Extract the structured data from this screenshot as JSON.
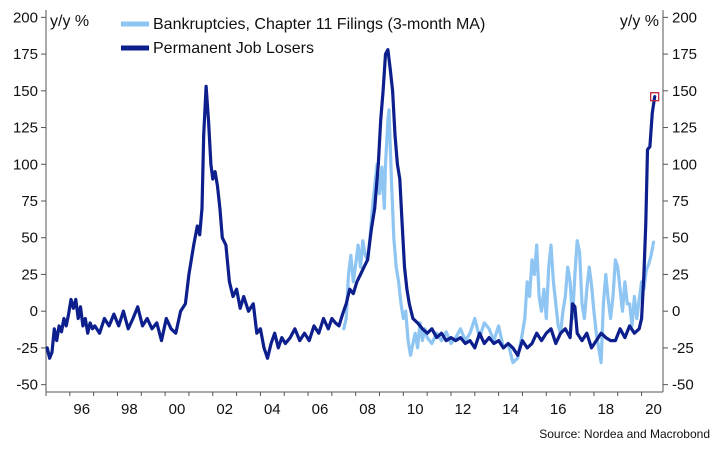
{
  "chart_data": {
    "type": "line",
    "left_axis_unit": "y/y %",
    "right_axis_unit": "y/y %",
    "ylim": [
      -55,
      205
    ],
    "y_ticks": [
      200,
      175,
      150,
      125,
      100,
      75,
      50,
      25,
      0,
      -25,
      -50
    ],
    "x_range": [
      1995.0,
      2020.9
    ],
    "x_ticks": [
      {
        "value": 1996,
        "label": "96"
      },
      {
        "value": 1998,
        "label": "98"
      },
      {
        "value": 2000,
        "label": "00"
      },
      {
        "value": 2002,
        "label": "02"
      },
      {
        "value": 2004,
        "label": "04"
      },
      {
        "value": 2006,
        "label": "06"
      },
      {
        "value": 2008,
        "label": "08"
      },
      {
        "value": 2010,
        "label": "10"
      },
      {
        "value": 2012,
        "label": "12"
      },
      {
        "value": 2014,
        "label": "14"
      },
      {
        "value": 2016,
        "label": "16"
      },
      {
        "value": 2018,
        "label": "18"
      },
      {
        "value": 2020,
        "label": "20"
      }
    ],
    "source": "Source: Nordea and Macrobond",
    "legend_position": "top",
    "series": [
      {
        "name": "Bankruptcies, Chapter 11 Filings (3-month MA)",
        "color": "#8ec5f2",
        "points": [
          [
            2007.5,
            -12
          ],
          [
            2007.6,
            -5
          ],
          [
            2007.7,
            25
          ],
          [
            2007.8,
            38
          ],
          [
            2007.9,
            20
          ],
          [
            2008.0,
            32
          ],
          [
            2008.1,
            45
          ],
          [
            2008.2,
            30
          ],
          [
            2008.3,
            48
          ],
          [
            2008.4,
            38
          ],
          [
            2008.5,
            35
          ],
          [
            2008.6,
            50
          ],
          [
            2008.7,
            70
          ],
          [
            2008.8,
            85
          ],
          [
            2008.9,
            100
          ],
          [
            2009.0,
            80
          ],
          [
            2009.1,
            98
          ],
          [
            2009.2,
            70
          ],
          [
            2009.25,
            100
          ],
          [
            2009.35,
            130
          ],
          [
            2009.4,
            137
          ],
          [
            2009.5,
            90
          ],
          [
            2009.6,
            50
          ],
          [
            2009.7,
            30
          ],
          [
            2009.8,
            20
          ],
          [
            2009.9,
            5
          ],
          [
            2010.0,
            -5
          ],
          [
            2010.1,
            0
          ],
          [
            2010.2,
            -20
          ],
          [
            2010.3,
            -30
          ],
          [
            2010.4,
            -22
          ],
          [
            2010.5,
            -15
          ],
          [
            2010.6,
            -25
          ],
          [
            2010.7,
            -8
          ],
          [
            2010.8,
            -20
          ],
          [
            2010.9,
            -12
          ],
          [
            2011.0,
            -18
          ],
          [
            2011.2,
            -22
          ],
          [
            2011.4,
            -15
          ],
          [
            2011.6,
            -20
          ],
          [
            2011.8,
            -14
          ],
          [
            2012.0,
            -22
          ],
          [
            2012.2,
            -18
          ],
          [
            2012.4,
            -12
          ],
          [
            2012.6,
            -20
          ],
          [
            2012.8,
            -15
          ],
          [
            2013.0,
            -5
          ],
          [
            2013.2,
            -18
          ],
          [
            2013.4,
            -8
          ],
          [
            2013.6,
            -12
          ],
          [
            2013.8,
            -20
          ],
          [
            2014.0,
            -10
          ],
          [
            2014.2,
            -25
          ],
          [
            2014.4,
            -22
          ],
          [
            2014.6,
            -35
          ],
          [
            2014.8,
            -32
          ],
          [
            2015.0,
            -15
          ],
          [
            2015.1,
            -5
          ],
          [
            2015.2,
            20
          ],
          [
            2015.3,
            10
          ],
          [
            2015.4,
            35
          ],
          [
            2015.5,
            25
          ],
          [
            2015.6,
            45
          ],
          [
            2015.7,
            10
          ],
          [
            2015.8,
            0
          ],
          [
            2015.9,
            15
          ],
          [
            2016.0,
            -5
          ],
          [
            2016.1,
            30
          ],
          [
            2016.2,
            45
          ],
          [
            2016.3,
            20
          ],
          [
            2016.4,
            5
          ],
          [
            2016.5,
            -10
          ],
          [
            2016.6,
            -15
          ],
          [
            2016.7,
            0
          ],
          [
            2016.8,
            10
          ],
          [
            2016.9,
            30
          ],
          [
            2017.0,
            20
          ],
          [
            2017.1,
            -5
          ],
          [
            2017.2,
            25
          ],
          [
            2017.3,
            48
          ],
          [
            2017.4,
            40
          ],
          [
            2017.5,
            5
          ],
          [
            2017.6,
            -5
          ],
          [
            2017.7,
            15
          ],
          [
            2017.8,
            30
          ],
          [
            2017.9,
            18
          ],
          [
            2018.0,
            0
          ],
          [
            2018.1,
            -15
          ],
          [
            2018.2,
            -25
          ],
          [
            2018.3,
            -35
          ],
          [
            2018.4,
            5
          ],
          [
            2018.5,
            25
          ],
          [
            2018.6,
            8
          ],
          [
            2018.7,
            -5
          ],
          [
            2018.8,
            10
          ],
          [
            2018.9,
            35
          ],
          [
            2019.0,
            30
          ],
          [
            2019.1,
            15
          ],
          [
            2019.2,
            0
          ],
          [
            2019.3,
            20
          ],
          [
            2019.4,
            5
          ],
          [
            2019.5,
            5
          ],
          [
            2019.6,
            -10
          ],
          [
            2019.7,
            10
          ],
          [
            2019.8,
            -5
          ],
          [
            2019.9,
            8
          ],
          [
            2020.0,
            20
          ],
          [
            2020.1,
            15
          ],
          [
            2020.2,
            28
          ],
          [
            2020.3,
            32
          ],
          [
            2020.4,
            38
          ],
          [
            2020.5,
            47
          ]
        ]
      },
      {
        "name": "Permanent Job Losers",
        "color": "#0d1f8c",
        "points": [
          [
            1995.05,
            -25
          ],
          [
            1995.15,
            -32
          ],
          [
            1995.25,
            -28
          ],
          [
            1995.35,
            -12
          ],
          [
            1995.45,
            -20
          ],
          [
            1995.55,
            -10
          ],
          [
            1995.65,
            -14
          ],
          [
            1995.75,
            -5
          ],
          [
            1995.85,
            -10
          ],
          [
            1995.95,
            -2
          ],
          [
            1996.05,
            8
          ],
          [
            1996.15,
            2
          ],
          [
            1996.25,
            8
          ],
          [
            1996.35,
            -5
          ],
          [
            1996.45,
            3
          ],
          [
            1996.55,
            -10
          ],
          [
            1996.65,
            -5
          ],
          [
            1996.75,
            -15
          ],
          [
            1996.85,
            -8
          ],
          [
            1996.95,
            -12
          ],
          [
            1997.05,
            -10
          ],
          [
            1997.25,
            -15
          ],
          [
            1997.45,
            -5
          ],
          [
            1997.65,
            -10
          ],
          [
            1997.85,
            -2
          ],
          [
            1998.05,
            -10
          ],
          [
            1998.25,
            0
          ],
          [
            1998.45,
            -12
          ],
          [
            1998.65,
            -5
          ],
          [
            1998.85,
            3
          ],
          [
            1999.05,
            -10
          ],
          [
            1999.25,
            -5
          ],
          [
            1999.45,
            -12
          ],
          [
            1999.65,
            -8
          ],
          [
            1999.85,
            -20
          ],
          [
            2000.05,
            -5
          ],
          [
            2000.25,
            -12
          ],
          [
            2000.45,
            -15
          ],
          [
            2000.65,
            0
          ],
          [
            2000.85,
            5
          ],
          [
            2001.0,
            25
          ],
          [
            2001.2,
            45
          ],
          [
            2001.35,
            58
          ],
          [
            2001.45,
            52
          ],
          [
            2001.55,
            70
          ],
          [
            2001.62,
            120
          ],
          [
            2001.72,
            153
          ],
          [
            2001.82,
            130
          ],
          [
            2001.92,
            100
          ],
          [
            2002.0,
            90
          ],
          [
            2002.1,
            95
          ],
          [
            2002.2,
            85
          ],
          [
            2002.3,
            70
          ],
          [
            2002.4,
            50
          ],
          [
            2002.55,
            45
          ],
          [
            2002.7,
            20
          ],
          [
            2002.85,
            10
          ],
          [
            2003.0,
            15
          ],
          [
            2003.15,
            2
          ],
          [
            2003.3,
            10
          ],
          [
            2003.5,
            0
          ],
          [
            2003.7,
            5
          ],
          [
            2003.85,
            -15
          ],
          [
            2004.0,
            -12
          ],
          [
            2004.15,
            -25
          ],
          [
            2004.3,
            -32
          ],
          [
            2004.45,
            -22
          ],
          [
            2004.6,
            -15
          ],
          [
            2004.75,
            -25
          ],
          [
            2004.9,
            -18
          ],
          [
            2005.05,
            -22
          ],
          [
            2005.25,
            -18
          ],
          [
            2005.45,
            -12
          ],
          [
            2005.65,
            -20
          ],
          [
            2005.85,
            -15
          ],
          [
            2006.05,
            -20
          ],
          [
            2006.25,
            -10
          ],
          [
            2006.45,
            -15
          ],
          [
            2006.65,
            -5
          ],
          [
            2006.85,
            -12
          ],
          [
            2007.0,
            -5
          ],
          [
            2007.15,
            -8
          ],
          [
            2007.3,
            -10
          ],
          [
            2007.45,
            -2
          ],
          [
            2007.6,
            5
          ],
          [
            2007.75,
            15
          ],
          [
            2007.9,
            12
          ],
          [
            2008.05,
            20
          ],
          [
            2008.2,
            25
          ],
          [
            2008.35,
            30
          ],
          [
            2008.5,
            35
          ],
          [
            2008.65,
            55
          ],
          [
            2008.8,
            70
          ],
          [
            2008.95,
            100
          ],
          [
            2009.05,
            130
          ],
          [
            2009.15,
            150
          ],
          [
            2009.25,
            175
          ],
          [
            2009.35,
            178
          ],
          [
            2009.45,
            165
          ],
          [
            2009.55,
            150
          ],
          [
            2009.65,
            120
          ],
          [
            2009.75,
            100
          ],
          [
            2009.85,
            90
          ],
          [
            2009.95,
            60
          ],
          [
            2010.05,
            30
          ],
          [
            2010.15,
            15
          ],
          [
            2010.25,
            5
          ],
          [
            2010.4,
            -5
          ],
          [
            2010.6,
            -8
          ],
          [
            2010.8,
            -12
          ],
          [
            2011.0,
            -15
          ],
          [
            2011.2,
            -12
          ],
          [
            2011.4,
            -18
          ],
          [
            2011.6,
            -15
          ],
          [
            2011.8,
            -20
          ],
          [
            2012.0,
            -18
          ],
          [
            2012.2,
            -20
          ],
          [
            2012.4,
            -18
          ],
          [
            2012.6,
            -22
          ],
          [
            2012.8,
            -20
          ],
          [
            2013.0,
            -25
          ],
          [
            2013.2,
            -15
          ],
          [
            2013.4,
            -22
          ],
          [
            2013.6,
            -18
          ],
          [
            2013.8,
            -22
          ],
          [
            2014.0,
            -20
          ],
          [
            2014.2,
            -25
          ],
          [
            2014.4,
            -22
          ],
          [
            2014.6,
            -25
          ],
          [
            2014.8,
            -30
          ],
          [
            2015.0,
            -20
          ],
          [
            2015.2,
            -25
          ],
          [
            2015.4,
            -22
          ],
          [
            2015.6,
            -15
          ],
          [
            2015.8,
            -20
          ],
          [
            2016.0,
            -15
          ],
          [
            2016.2,
            -12
          ],
          [
            2016.4,
            -22
          ],
          [
            2016.6,
            -15
          ],
          [
            2016.8,
            -12
          ],
          [
            2017.0,
            -18
          ],
          [
            2017.1,
            5
          ],
          [
            2017.2,
            3
          ],
          [
            2017.3,
            -15
          ],
          [
            2017.5,
            -20
          ],
          [
            2017.7,
            -15
          ],
          [
            2017.9,
            -25
          ],
          [
            2018.1,
            -20
          ],
          [
            2018.3,
            -15
          ],
          [
            2018.5,
            -18
          ],
          [
            2018.7,
            -20
          ],
          [
            2018.9,
            -20
          ],
          [
            2019.1,
            -12
          ],
          [
            2019.3,
            -18
          ],
          [
            2019.5,
            -10
          ],
          [
            2019.7,
            -15
          ],
          [
            2019.9,
            -12
          ],
          [
            2020.0,
            -5
          ],
          [
            2020.1,
            25
          ],
          [
            2020.18,
            60
          ],
          [
            2020.25,
            110
          ],
          [
            2020.35,
            112
          ],
          [
            2020.45,
            135
          ],
          [
            2020.55,
            146
          ]
        ]
      }
    ],
    "marker": {
      "x": 2020.55,
      "y": 146,
      "color": "#c0273a"
    }
  }
}
